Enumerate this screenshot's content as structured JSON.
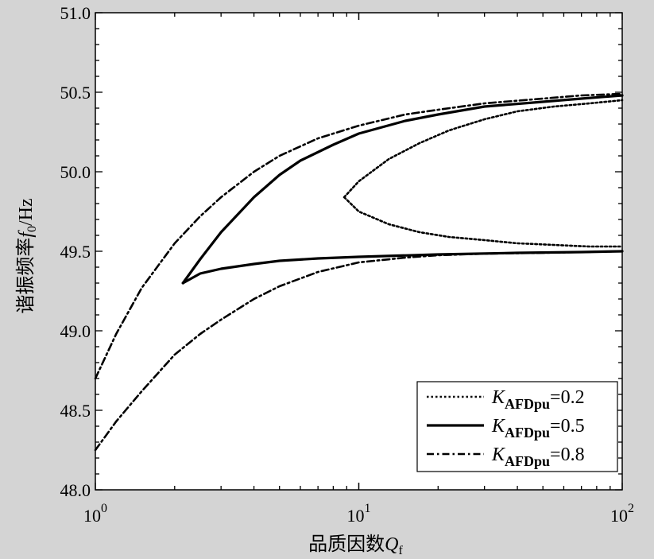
{
  "chart_data": {
    "type": "line",
    "xscale": "log",
    "xlim": [
      1,
      100
    ],
    "ylim": [
      48.0,
      51.0
    ],
    "xlabel": "品质因数",
    "xlabel_var": "Q",
    "xlabel_sub": "f",
    "ylabel": "谐振频率",
    "ylabel_var": "f",
    "ylabel_sub": "0",
    "ylabel_unit": "/Hz",
    "x_ticks": [
      {
        "value": 1,
        "base": "10",
        "exp": "0"
      },
      {
        "value": 10,
        "base": "10",
        "exp": "1"
      },
      {
        "value": 100,
        "base": "10",
        "exp": "2"
      }
    ],
    "y_ticks": [
      "48.0",
      "48.5",
      "49.0",
      "49.5",
      "50.0",
      "50.5",
      "51.0"
    ],
    "grid": false,
    "legend_position": "bottom-right",
    "series": [
      {
        "name": "K_AFDpu=0.2",
        "legend_var": "K",
        "legend_sub": "AFDpu",
        "legend_val": "=0.2",
        "style": "dotted",
        "upper": {
          "x": [
            8.8,
            10,
            13,
            17,
            22,
            30,
            40,
            55,
            75,
            100
          ],
          "y": [
            49.84,
            49.94,
            50.08,
            50.18,
            50.26,
            50.33,
            50.38,
            50.41,
            50.43,
            50.45
          ]
        },
        "lower": {
          "x": [
            8.8,
            10,
            13,
            17,
            22,
            30,
            40,
            55,
            75,
            100
          ],
          "y": [
            49.84,
            49.75,
            49.67,
            49.62,
            49.59,
            49.57,
            49.55,
            49.54,
            49.53,
            49.53
          ]
        }
      },
      {
        "name": "K_AFDpu=0.5",
        "legend_var": "K",
        "legend_sub": "AFDpu",
        "legend_val": "=0.5",
        "style": "solid",
        "upper": {
          "x": [
            2.15,
            2.5,
            3,
            4,
            5,
            6,
            8,
            10,
            15,
            20,
            30,
            50,
            70,
            100
          ],
          "y": [
            49.3,
            49.45,
            49.62,
            49.84,
            49.98,
            50.07,
            50.17,
            50.24,
            50.32,
            50.36,
            50.41,
            50.44,
            50.46,
            50.48
          ]
        },
        "lower": {
          "x": [
            2.15,
            2.5,
            3,
            4,
            5,
            7,
            10,
            20,
            40,
            70,
            100
          ],
          "y": [
            49.3,
            49.36,
            49.39,
            49.42,
            49.44,
            49.455,
            49.465,
            49.48,
            49.49,
            49.495,
            49.5
          ]
        }
      },
      {
        "name": "K_AFDpu=0.8",
        "legend_var": "K",
        "legend_sub": "AFDpu",
        "legend_val": "=0.8",
        "style": "dashdot",
        "upper": {
          "x": [
            1,
            1.2,
            1.5,
            2,
            2.5,
            3,
            4,
            5,
            7,
            10,
            15,
            20,
            30,
            50,
            70,
            100
          ],
          "y": [
            48.7,
            48.98,
            49.27,
            49.55,
            49.72,
            49.84,
            50.0,
            50.1,
            50.21,
            50.29,
            50.36,
            50.39,
            50.43,
            50.46,
            50.48,
            50.49
          ]
        },
        "lower": {
          "x": [
            1,
            1.2,
            1.5,
            2,
            2.5,
            3,
            4,
            5,
            7,
            10,
            15,
            20,
            30,
            50,
            70,
            100
          ],
          "y": [
            48.25,
            48.43,
            48.62,
            48.85,
            48.98,
            49.07,
            49.2,
            49.28,
            49.37,
            49.43,
            49.46,
            49.475,
            49.485,
            49.49,
            49.495,
            49.5
          ]
        }
      }
    ]
  }
}
